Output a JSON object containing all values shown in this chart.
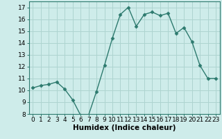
{
  "x": [
    0,
    1,
    2,
    3,
    4,
    5,
    6,
    7,
    8,
    9,
    10,
    11,
    12,
    13,
    14,
    15,
    16,
    17,
    18,
    19,
    20,
    21,
    22,
    23
  ],
  "y": [
    10.2,
    10.4,
    10.5,
    10.7,
    10.1,
    9.2,
    7.9,
    7.9,
    9.9,
    12.1,
    14.4,
    16.4,
    17.0,
    15.4,
    16.4,
    16.6,
    16.3,
    16.5,
    14.8,
    15.3,
    14.1,
    12.1,
    11.0,
    11.0
  ],
  "line_color": "#2d7a6e",
  "marker_color": "#2d7a6e",
  "bg_color": "#ceecea",
  "grid_color": "#aed4d0",
  "xlabel": "Humidex (Indice chaleur)",
  "ylim": [
    8,
    17.5
  ],
  "yticks": [
    8,
    9,
    10,
    11,
    12,
    13,
    14,
    15,
    16,
    17
  ],
  "xlim": [
    -0.5,
    23.5
  ],
  "xticks": [
    0,
    1,
    2,
    3,
    4,
    5,
    6,
    7,
    8,
    9,
    10,
    11,
    12,
    13,
    14,
    15,
    16,
    17,
    18,
    19,
    20,
    21,
    22,
    23
  ],
  "xtick_labels": [
    "0",
    "1",
    "2",
    "3",
    "4",
    "5",
    "6",
    "7",
    "8",
    "9",
    "10",
    "11",
    "12",
    "13",
    "14",
    "15",
    "16",
    "17",
    "18",
    "19",
    "20",
    "21",
    "22",
    "23"
  ],
  "xlabel_fontsize": 7.5,
  "tick_fontsize": 6.5,
  "marker_size": 2.5,
  "line_width": 1.0
}
